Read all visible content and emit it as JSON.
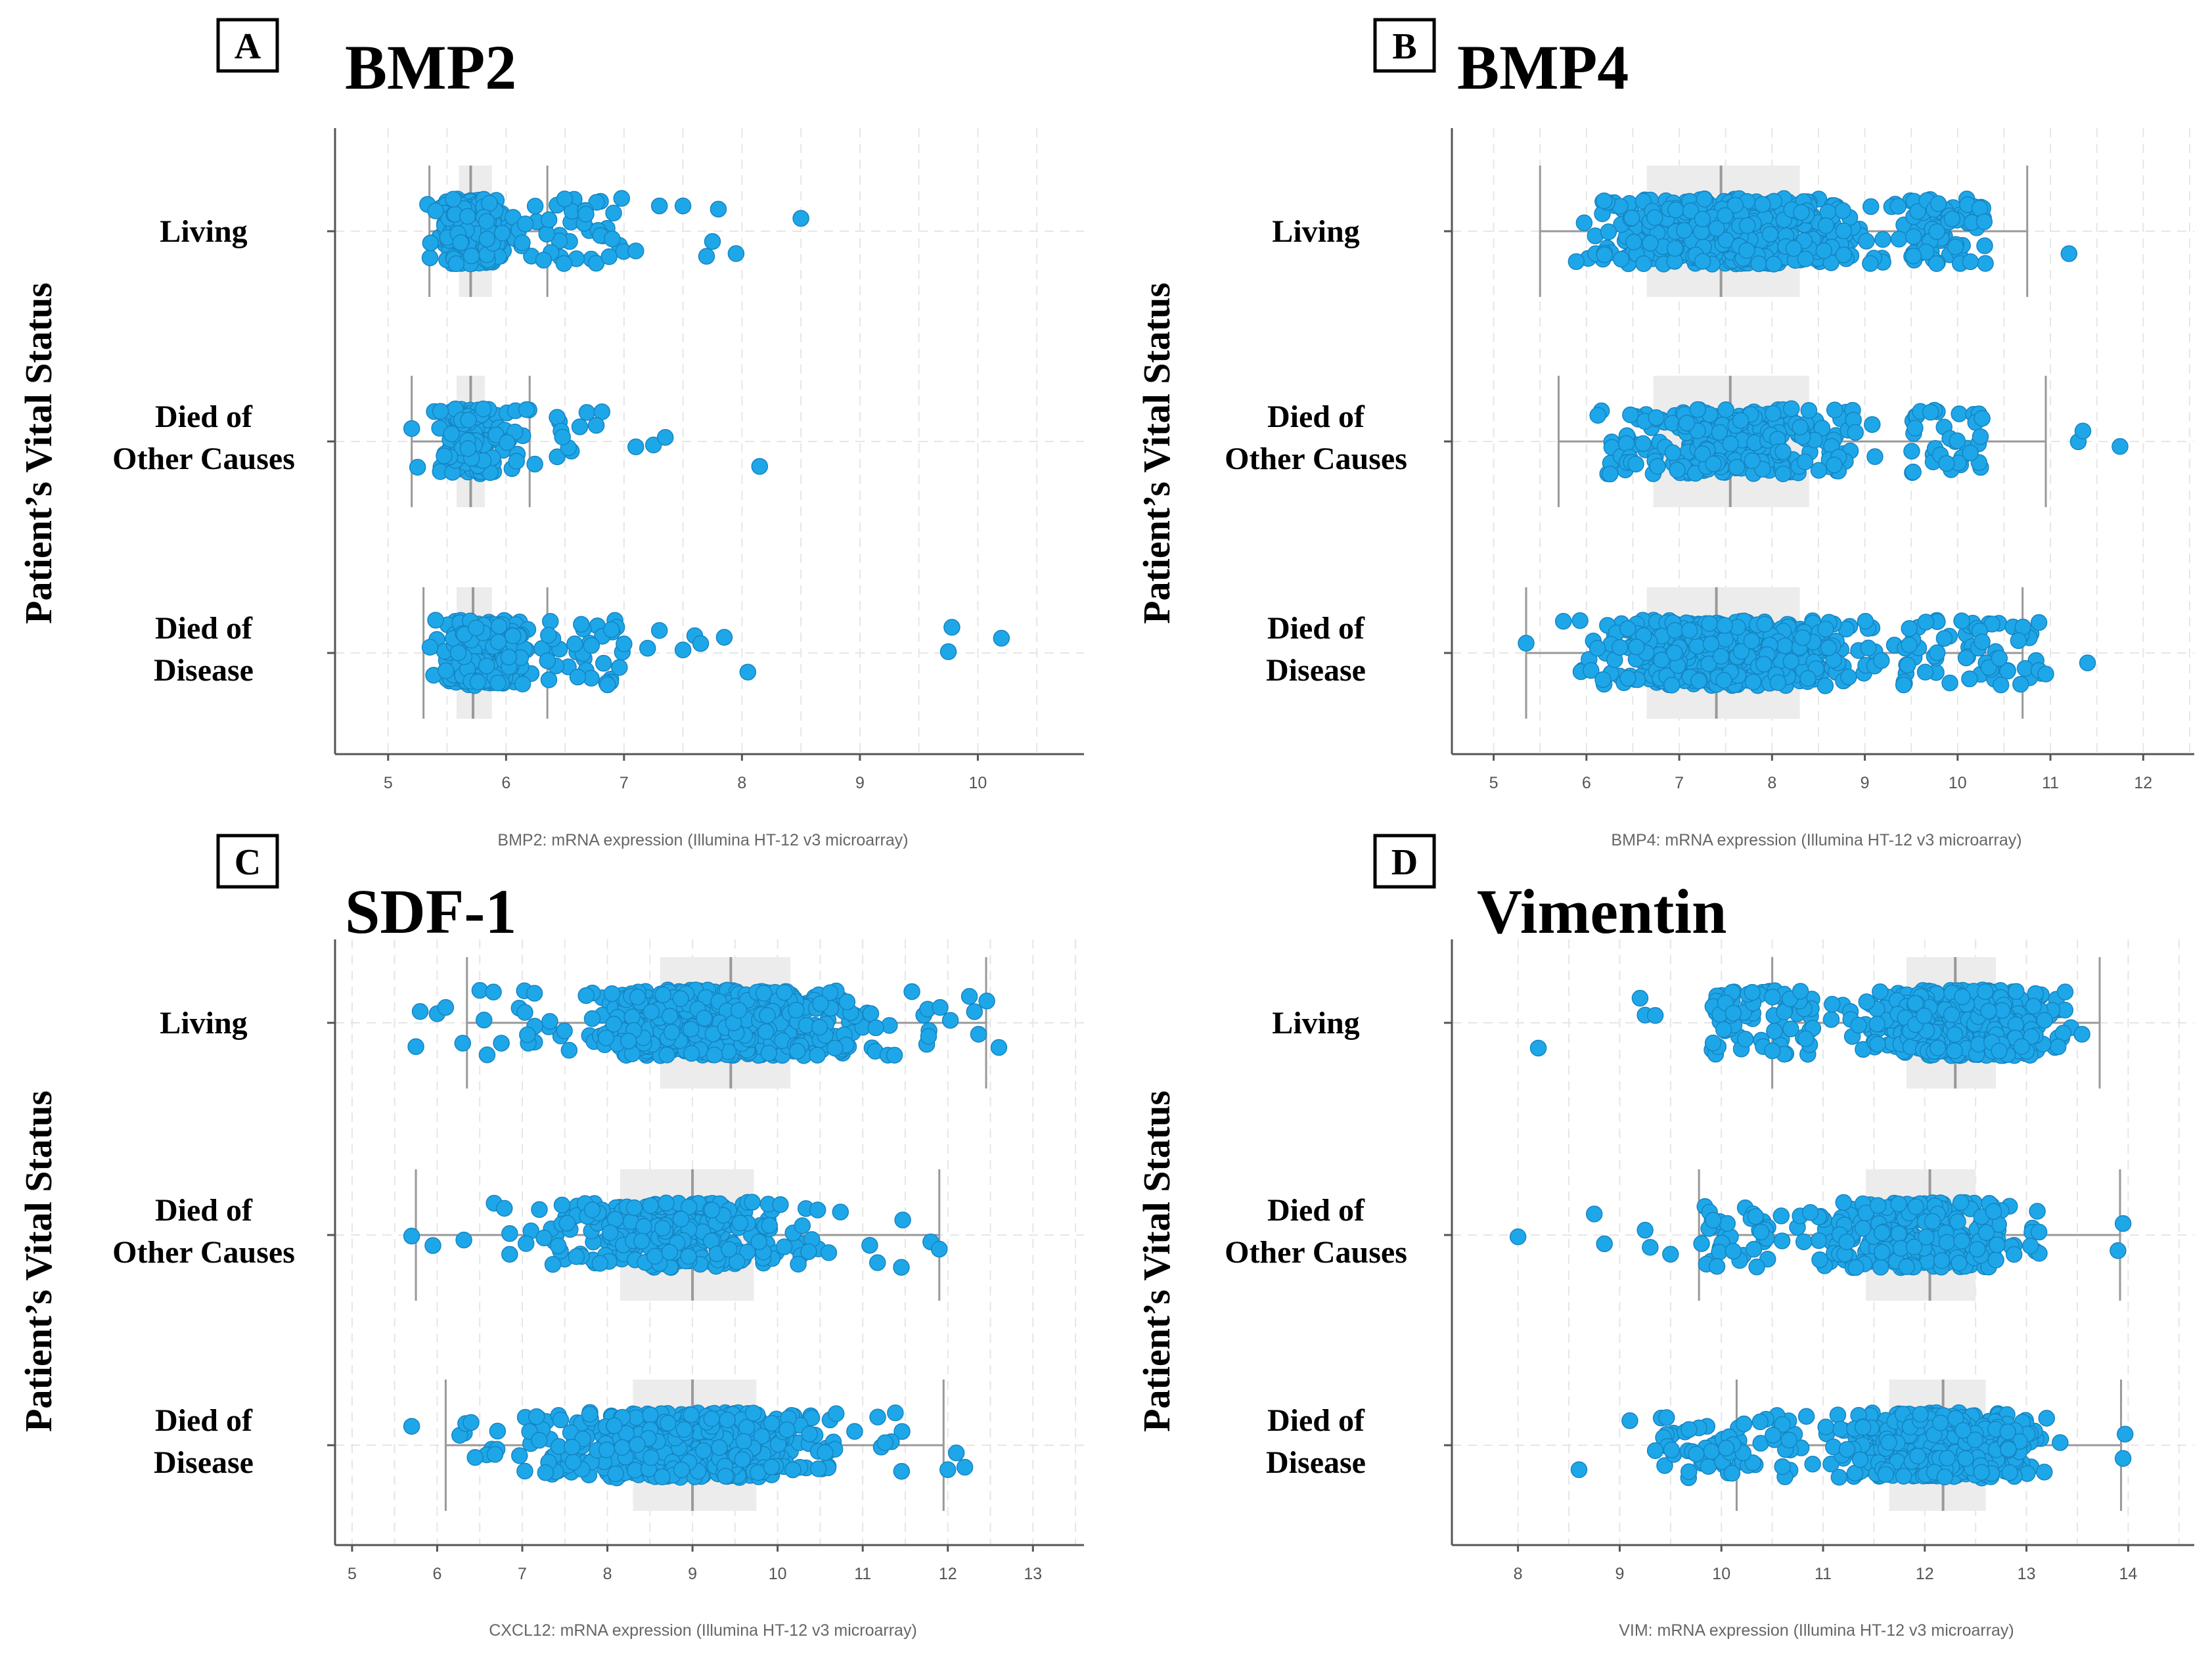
{
  "colors": {
    "point": "#1ea7e8",
    "point_stroke": "#1684c2",
    "box": "#ececec"
  },
  "y_axis_label": "Patient’s Vital Status",
  "categories": [
    {
      "line1": "Living",
      "line2": ""
    },
    {
      "line1": "Died of",
      "line2": "Other Causes"
    },
    {
      "line1": "Died of",
      "line2": "Disease"
    }
  ],
  "chart_data": [
    {
      "panel": "A",
      "title": "BMP2",
      "type": "strip-box",
      "xlabel": "BMP2: mRNA expression (Illumina HT-12 v3 microarray)",
      "xlim": [
        4.55,
        10.9
      ],
      "ticks": [
        5,
        6,
        7,
        8,
        9,
        10
      ],
      "groups": [
        {
          "name": "Living",
          "whisker_low": 5.35,
          "q1": 5.6,
          "median": 5.7,
          "q3": 5.88,
          "whisker_high": 6.35,
          "dense": [
            5.3,
            6.1
          ],
          "sparse": [
            6.1,
            7.0
          ],
          "n": 330,
          "outliers": [
            6.8,
            6.9,
            7.1,
            7.3,
            7.5,
            7.7,
            7.8,
            7.75,
            7.95,
            8.5
          ]
        },
        {
          "name": "Died of Other Causes",
          "whisker_low": 5.2,
          "q1": 5.58,
          "median": 5.7,
          "q3": 5.82,
          "whisker_high": 6.2,
          "dense": [
            5.3,
            6.1
          ],
          "sparse": [
            6.0,
            6.9
          ],
          "n": 180,
          "outliers": [
            5.2,
            5.25,
            7.1,
            7.25,
            7.35,
            8.15
          ]
        },
        {
          "name": "Died of Disease",
          "whisker_low": 5.3,
          "q1": 5.58,
          "median": 5.72,
          "q3": 5.88,
          "whisker_high": 6.35,
          "dense": [
            5.3,
            6.3
          ],
          "sparse": [
            6.3,
            7.0
          ],
          "n": 300,
          "outliers": [
            7.0,
            7.2,
            7.3,
            7.5,
            7.6,
            7.65,
            7.85,
            8.05,
            9.75,
            9.78,
            10.2
          ]
        }
      ]
    },
    {
      "panel": "B",
      "title": "BMP4",
      "type": "strip-box",
      "xlabel": "BMP4: mRNA expression (Illumina HT-12 v3 microarray)",
      "xlim": [
        4.55,
        12.55
      ],
      "ticks": [
        5,
        6,
        7,
        8,
        9,
        10,
        11,
        12
      ],
      "groups": [
        {
          "name": "Living",
          "whisker_low": 5.5,
          "q1": 6.65,
          "median": 7.45,
          "q3": 8.3,
          "whisker_high": 10.75,
          "dense": [
            5.55,
            9.7
          ],
          "sparse": [
            9.5,
            10.3
          ],
          "n": 620,
          "outliers": [
            11.2
          ]
        },
        {
          "name": "Died of Other Causes",
          "whisker_low": 5.7,
          "q1": 6.72,
          "median": 7.55,
          "q3": 8.4,
          "whisker_high": 10.95,
          "dense": [
            5.75,
            9.6
          ],
          "sparse": [
            9.5,
            10.3
          ],
          "n": 300,
          "outliers": [
            11.3,
            11.35,
            11.75
          ]
        },
        {
          "name": "Died of Disease",
          "whisker_low": 5.35,
          "q1": 6.65,
          "median": 7.4,
          "q3": 8.3,
          "whisker_high": 10.7,
          "dense": [
            5.6,
            9.5
          ],
          "sparse": [
            9.4,
            10.9
          ],
          "n": 560,
          "outliers": [
            5.35,
            10.95,
            11.4
          ]
        }
      ]
    },
    {
      "panel": "C",
      "title": "SDF-1",
      "type": "strip-box",
      "xlabel": "CXCL12: mRNA expression (Illumina HT-12 v3 microarray)",
      "xlim": [
        4.8,
        13.6
      ],
      "ticks": [
        5,
        6,
        7,
        8,
        9,
        10,
        11,
        12,
        13
      ],
      "groups": [
        {
          "name": "Living",
          "whisker_low": 6.35,
          "q1": 8.62,
          "median": 9.45,
          "q3": 10.15,
          "whisker_high": 12.45,
          "dense": [
            7.3,
            11.6
          ],
          "sparse": [
            6.4,
            12.5
          ],
          "n": 620,
          "outliers": [
            5.75,
            5.8,
            6.0,
            6.1,
            6.3,
            12.6
          ]
        },
        {
          "name": "Died of Other Causes",
          "whisker_low": 5.75,
          "q1": 8.15,
          "median": 9.0,
          "q3": 9.72,
          "whisker_high": 11.9,
          "dense": [
            6.6,
            11.0
          ],
          "sparse": [
            6.3,
            11.5
          ],
          "n": 300,
          "outliers": [
            5.7,
            5.95,
            11.8,
            11.9
          ]
        },
        {
          "name": "Died of Disease",
          "whisker_low": 6.1,
          "q1": 8.3,
          "median": 9.0,
          "q3": 9.75,
          "whisker_high": 11.95,
          "dense": [
            6.8,
            11.2
          ],
          "sparse": [
            6.2,
            11.5
          ],
          "n": 560,
          "outliers": [
            5.7,
            12.0,
            12.1,
            12.2
          ]
        }
      ]
    },
    {
      "panel": "D",
      "title": "Vimentin",
      "type": "strip-box",
      "xlabel": "VIM: mRNA expression (Illumina HT-12 v3 microarray)",
      "xlim": [
        7.35,
        14.65
      ],
      "ticks": [
        8,
        9,
        10,
        11,
        12,
        13,
        14
      ],
      "groups": [
        {
          "name": "Living",
          "whisker_low": 10.5,
          "q1": 11.82,
          "median": 12.3,
          "q3": 12.7,
          "whisker_high": 13.72,
          "dense": [
            10.9,
            13.7
          ],
          "sparse": [
            9.9,
            10.9
          ],
          "n": 620,
          "outliers": [
            8.2,
            9.2,
            9.25,
            9.35
          ]
        },
        {
          "name": "Died of Other Causes",
          "whisker_low": 9.78,
          "q1": 11.42,
          "median": 12.05,
          "q3": 12.5,
          "whisker_high": 13.92,
          "dense": [
            10.4,
            13.4
          ],
          "sparse": [
            9.8,
            10.5
          ],
          "n": 300,
          "outliers": [
            8.0,
            8.75,
            8.85,
            9.25,
            9.3,
            9.5,
            13.9,
            13.95
          ]
        },
        {
          "name": "Died of Disease",
          "whisker_low": 10.15,
          "q1": 11.65,
          "median": 12.18,
          "q3": 12.6,
          "whisker_high": 13.93,
          "dense": [
            10.8,
            13.5
          ],
          "sparse": [
            9.4,
            10.9
          ],
          "n": 560,
          "outliers": [
            8.6,
            9.1,
            9.35,
            13.95,
            13.97
          ]
        }
      ]
    }
  ]
}
